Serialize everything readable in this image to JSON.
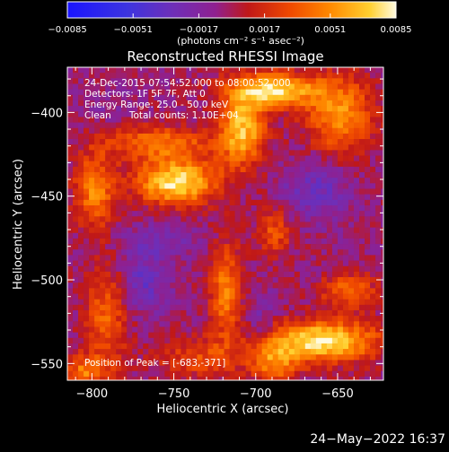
{
  "chart_data": {
    "type": "heatmap",
    "title": "Reconstructed RHESSI Image",
    "xlabel": "Heliocentric X (arcsec)",
    "ylabel": "Heliocentric Y (arcsec)",
    "xlim": [
      -815,
      -622
    ],
    "ylim": [
      -560,
      -373
    ],
    "x_ticks": [
      -800,
      -750,
      -700,
      -650
    ],
    "y_ticks": [
      -400,
      -450,
      -500,
      -550
    ],
    "x_tick_labels": [
      "−800",
      "−750",
      "−700",
      "−650"
    ],
    "y_tick_labels": [
      "−400",
      "−450",
      "−500",
      "−550"
    ],
    "colorbar": {
      "range": [
        -0.0085,
        0.0085
      ],
      "ticks": [
        -0.0085,
        -0.0051,
        -0.0017,
        0.0017,
        0.0051,
        0.0085
      ],
      "tick_labels": [
        "−0.0085",
        "−0.0051",
        "−0.0017",
        "0.0017",
        "0.0051",
        "0.0085"
      ],
      "units": "(photons cm⁻² s⁻¹ asec⁻²)"
    },
    "annotations": [
      "24-Dec-2015 07:54:52.000 to 08:00:52.000",
      "Detectors: 1F 5F 7F, Att 0",
      "Energy Range: 25.0 - 50.0 keV",
      "Clean      Total counts: 1.10E+04"
    ],
    "peak_label": "Position of Peak = [-683,-371]",
    "peak": [
      -683,
      -371
    ],
    "blobs": [
      {
        "x": -750,
        "y": -440,
        "v": 0.0085,
        "sx": 24,
        "sy": 13
      },
      {
        "x": -760,
        "y": -417,
        "v": 0.0048,
        "sx": 32,
        "sy": 10
      },
      {
        "x": -800,
        "y": -445,
        "v": 0.0052,
        "sx": 12,
        "sy": 22
      },
      {
        "x": -793,
        "y": -520,
        "v": 0.004,
        "sx": 13,
        "sy": 32
      },
      {
        "x": -806,
        "y": -553,
        "v": 0.0045,
        "sx": 13,
        "sy": 10
      },
      {
        "x": -735,
        "y": -545,
        "v": 0.0032,
        "sx": 28,
        "sy": 12
      },
      {
        "x": -720,
        "y": -505,
        "v": 0.005,
        "sx": 10,
        "sy": 28
      },
      {
        "x": -710,
        "y": -408,
        "v": 0.0072,
        "sx": 14,
        "sy": 22
      },
      {
        "x": -690,
        "y": -385,
        "v": 0.0078,
        "sx": 26,
        "sy": 10
      },
      {
        "x": -650,
        "y": -400,
        "v": 0.0058,
        "sx": 20,
        "sy": 22
      },
      {
        "x": -690,
        "y": -470,
        "v": 0.0036,
        "sx": 10,
        "sy": 14
      },
      {
        "x": -660,
        "y": -535,
        "v": 0.0085,
        "sx": 32,
        "sy": 12
      },
      {
        "x": -645,
        "y": -505,
        "v": 0.0045,
        "sx": 16,
        "sy": 10
      },
      {
        "x": -690,
        "y": -548,
        "v": 0.0048,
        "sx": 14,
        "sy": 12
      },
      {
        "x": -665,
        "y": -445,
        "v": -0.0028,
        "sx": 20,
        "sy": 18
      },
      {
        "x": -770,
        "y": -500,
        "v": -0.0028,
        "sx": 16,
        "sy": 18
      },
      {
        "x": -760,
        "y": -475,
        "v": -0.0018,
        "sx": 26,
        "sy": 10
      },
      {
        "x": -790,
        "y": -395,
        "v": -0.0008,
        "sx": 16,
        "sy": 10
      },
      {
        "x": -700,
        "y": -520,
        "v": -0.0014,
        "sx": 10,
        "sy": 16
      }
    ]
  },
  "footer": {
    "date": "24−May−2022 16:37"
  }
}
